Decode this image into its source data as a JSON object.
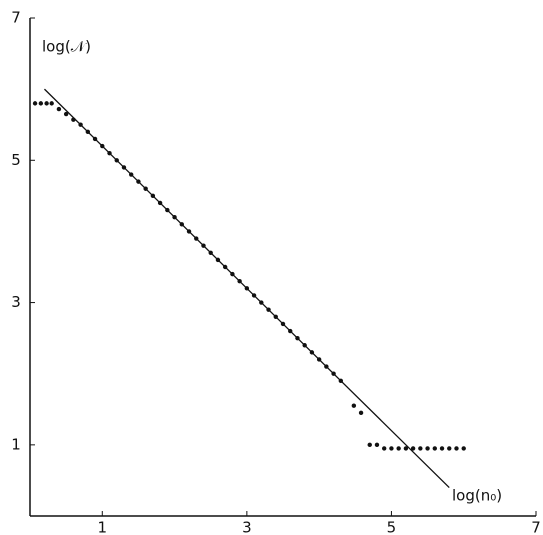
{
  "chart_data": {
    "type": "scatter",
    "x_label": "log(n₀)",
    "y_label": "log(𝒩)",
    "xlim": [
      0,
      7
    ],
    "ylim": [
      0,
      7
    ],
    "xticks": [
      1,
      3,
      5,
      7
    ],
    "yticks": [
      1,
      3,
      5,
      7
    ],
    "series": [
      {
        "style": "points",
        "color": "#111",
        "x": [
          0.07,
          0.15,
          0.23,
          0.3,
          0.4,
          0.5,
          0.6,
          0.7,
          0.8,
          0.9,
          1.0,
          1.1,
          1.2,
          1.3,
          1.4,
          1.5,
          1.6,
          1.7,
          1.8,
          1.9,
          2.0,
          2.1,
          2.2,
          2.3,
          2.4,
          2.5,
          2.6,
          2.7,
          2.8,
          2.9,
          3.0,
          3.1,
          3.2,
          3.3,
          3.4,
          3.5,
          3.6,
          3.7,
          3.8,
          3.9,
          4.0,
          4.1,
          4.2,
          4.3,
          4.48,
          4.58,
          4.7,
          4.8,
          4.9,
          5.0,
          5.1,
          5.2,
          5.3,
          5.4,
          5.5,
          5.6,
          5.7,
          5.8,
          5.9,
          6.0
        ],
        "values": [
          5.8,
          5.8,
          5.8,
          5.8,
          5.72,
          5.65,
          5.57,
          5.5,
          5.4,
          5.3,
          5.2,
          5.1,
          5.0,
          4.9,
          4.8,
          4.7,
          4.6,
          4.5,
          4.4,
          4.3,
          4.2,
          4.1,
          4.0,
          3.9,
          3.8,
          3.7,
          3.6,
          3.5,
          3.4,
          3.3,
          3.2,
          3.1,
          3.0,
          2.9,
          2.8,
          2.7,
          2.6,
          2.5,
          2.4,
          2.3,
          2.2,
          2.1,
          2.0,
          1.9,
          1.55,
          1.45,
          1.0,
          1.0,
          0.95,
          0.95,
          0.95,
          0.95,
          0.95,
          0.95,
          0.95,
          0.95,
          0.95,
          0.95,
          0.95,
          0.95
        ]
      },
      {
        "style": "line",
        "color": "#111",
        "x": [
          0.2,
          5.8
        ],
        "values": [
          6.0,
          0.4
        ]
      }
    ]
  }
}
